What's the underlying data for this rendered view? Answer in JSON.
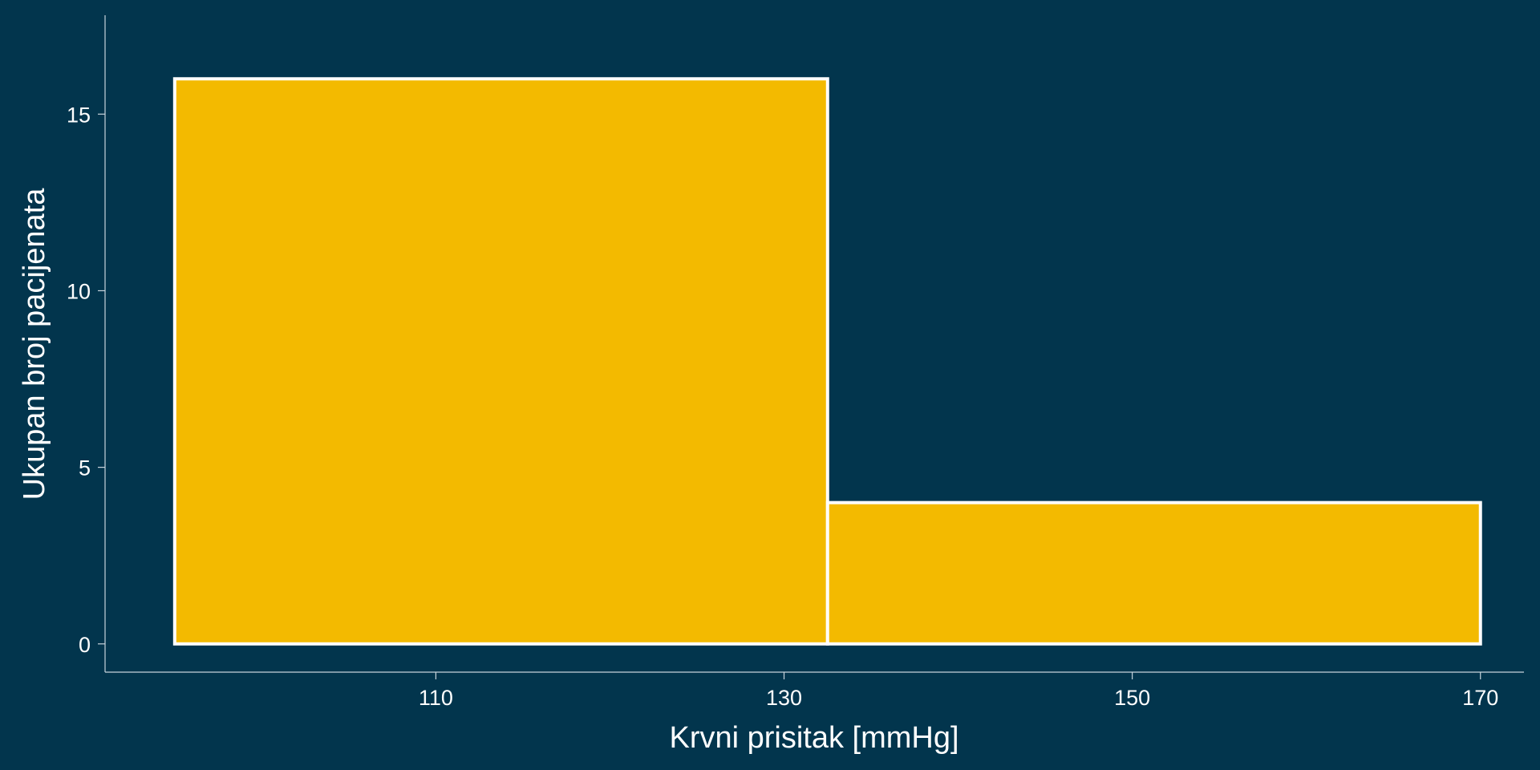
{
  "colors": {
    "background": "#02354d",
    "bar_fill": "#f3ba00",
    "bar_edge": "#ffffff",
    "text": "#ffffff",
    "axis": "#c8d4dc"
  },
  "chart_data": {
    "type": "bar",
    "histogram": true,
    "bins": [
      {
        "x0": 95,
        "x1": 132.5,
        "value": 16
      },
      {
        "x0": 132.5,
        "x1": 170,
        "value": 4
      }
    ],
    "xlabel": "Krvni prisitak [mmHg]",
    "ylabel": "Ukupan broj pacijenata",
    "xticks": [
      110,
      130,
      150,
      170
    ],
    "yticks": [
      0,
      5,
      10,
      15
    ],
    "xlim": [
      91,
      172.5
    ],
    "ylim": [
      -0.8,
      17.8
    ],
    "grid": false,
    "legend": "none"
  }
}
